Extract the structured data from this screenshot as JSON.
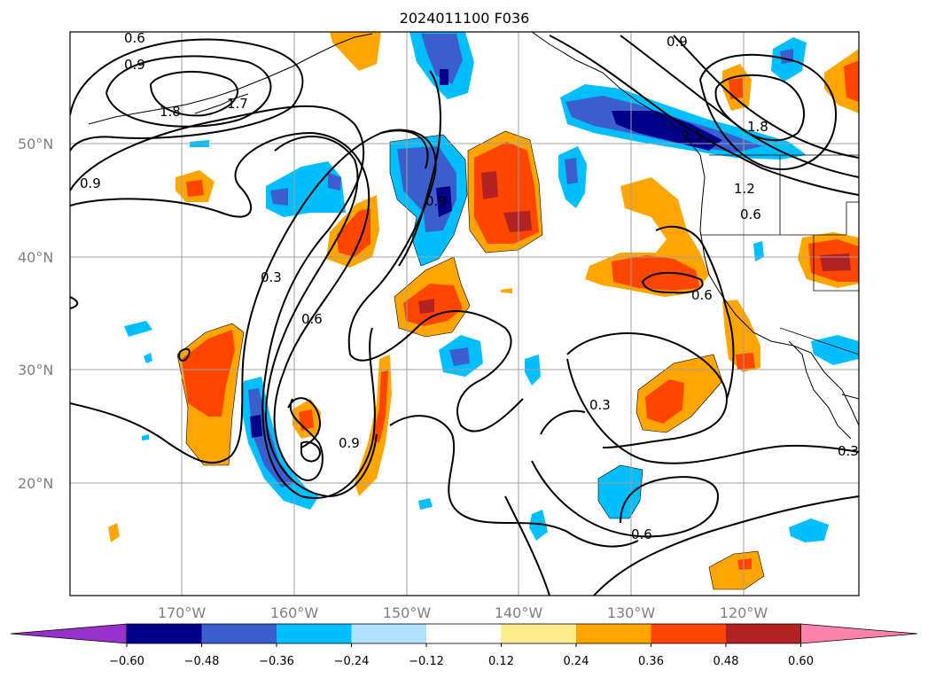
{
  "title": "2024011100 F036",
  "lat_labels": [
    "50°N",
    "40°N",
    "30°N",
    "20°N"
  ],
  "lon_labels": [
    "170°W",
    "160°W",
    "150°W",
    "140°W",
    "130°W",
    "120°W"
  ],
  "colorbar": {
    "ticks": [
      "−0.60",
      "−0.48",
      "−0.36",
      "−0.24",
      "−0.12",
      "0.12",
      "0.24",
      "0.36",
      "0.48",
      "0.60"
    ],
    "colors": [
      "#9932cc",
      "#00008b",
      "#3a5fcd",
      "#00bfff",
      "#b0e2ff",
      "#ffffff",
      "#ffec8b",
      "#ffa500",
      "#ff4500",
      "#b22222",
      "#ff82ab"
    ]
  },
  "contour_labels": [
    "0.6",
    "0.9",
    "1.8",
    "1.7",
    "0.9",
    "0.9",
    "0.3",
    "0.6",
    "0.9",
    "0.3",
    "0.6",
    "0.9",
    "1.8",
    "1.5",
    "1.2",
    "0.6",
    "0.6",
    "0.3"
  ]
}
